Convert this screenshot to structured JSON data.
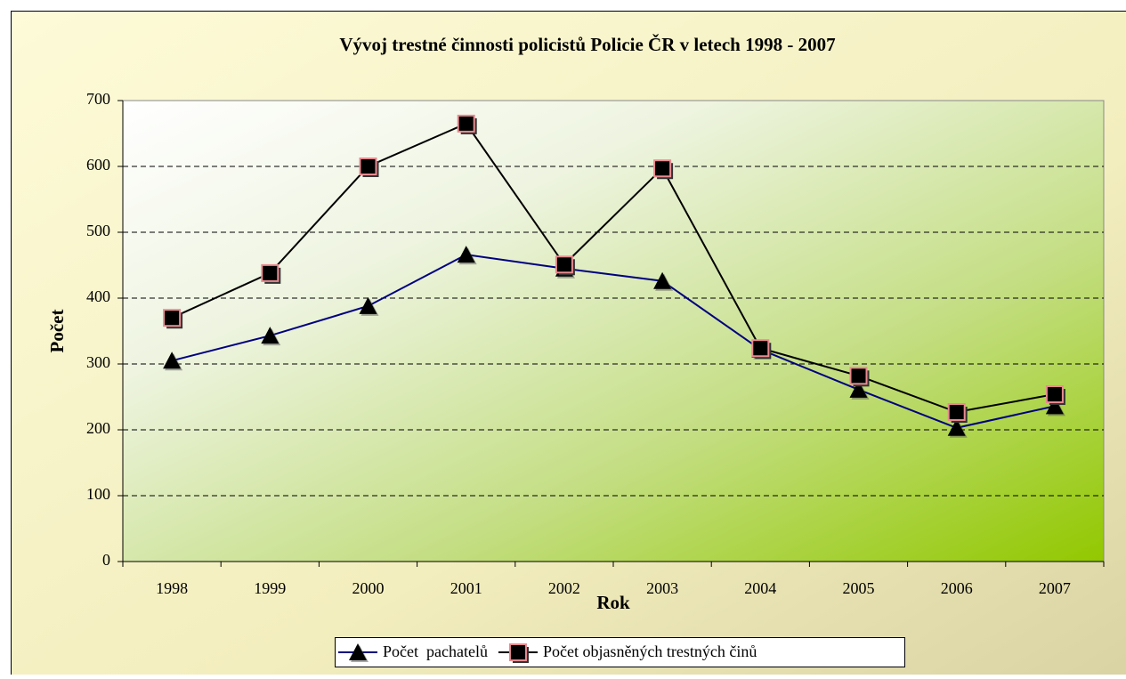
{
  "chart_data": {
    "type": "line",
    "title": "Vývoj trestné činnosti policistů Policie ČR v letech 1998 - 2007",
    "xlabel": "Rok",
    "ylabel": "Počet",
    "categories": [
      "1998",
      "1999",
      "2000",
      "2001",
      "2002",
      "2003",
      "2004",
      "2005",
      "2006",
      "2007"
    ],
    "series": [
      {
        "name": "Počet  pachatelů",
        "color": "#000080",
        "marker": "triangle",
        "marker_color": "#000000",
        "values": [
          305,
          343,
          388,
          466,
          445,
          426,
          322,
          261,
          203,
          236
        ]
      },
      {
        "name": "Počet objasněných trestných činů",
        "color": "#000000",
        "marker": "square",
        "marker_color": "#000000",
        "marker_edge": "#e88a90",
        "values": [
          370,
          438,
          600,
          665,
          451,
          597,
          324,
          282,
          227,
          254
        ]
      }
    ],
    "ylim": [
      0,
      700
    ],
    "yticks": [
      0,
      100,
      200,
      300,
      400,
      500,
      600,
      700
    ],
    "grid": true,
    "legend": "bottom"
  }
}
